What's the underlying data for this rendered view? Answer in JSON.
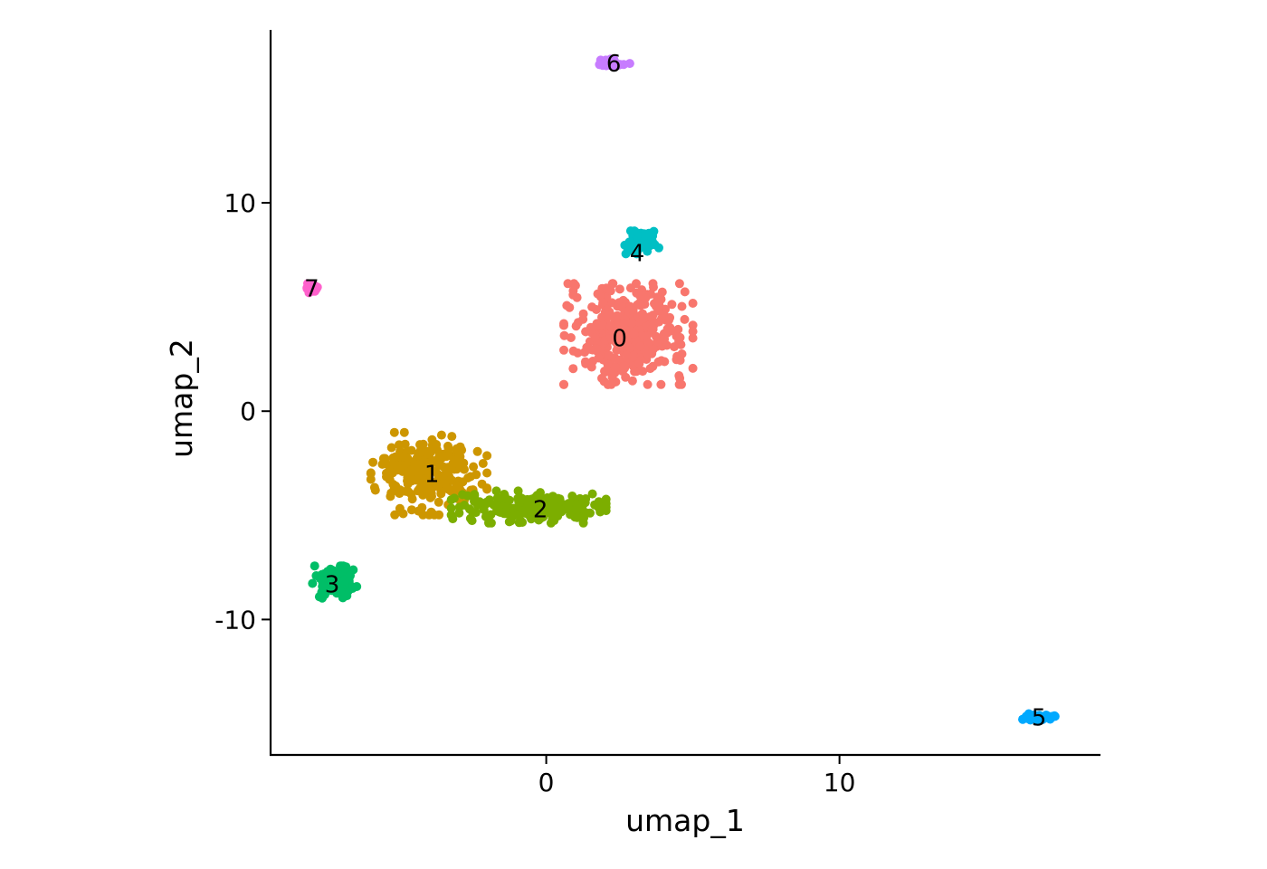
{
  "chart_data": {
    "type": "scatter",
    "title": "",
    "xlabel": "umap_1",
    "ylabel": "umap_2",
    "xlim": [
      -9.4,
      18.9
    ],
    "ylim": [
      -16.5,
      18.3
    ],
    "x_ticks": [
      0,
      10
    ],
    "y_ticks": [
      -10,
      0,
      10
    ],
    "x_tick_labels": [
      "0",
      "10"
    ],
    "y_tick_labels": [
      "-10",
      "0",
      "10"
    ],
    "grid": false,
    "legend": "none",
    "clusters": [
      {
        "label": "0",
        "color": "#F8766D",
        "label_x": 2.5,
        "label_y": 3.5,
        "cx": 2.8,
        "cy": 3.7,
        "sx": 1.0,
        "sy": 1.1,
        "n": 380
      },
      {
        "label": "1",
        "color": "#CD9600",
        "label_x": -3.9,
        "label_y": -3.0,
        "cx": -4.0,
        "cy": -3.0,
        "sx": 0.9,
        "sy": 0.9,
        "n": 250
      },
      {
        "label": "2",
        "color": "#7CAE00",
        "label_x": -0.2,
        "label_y": -4.7,
        "cx": -0.6,
        "cy": -4.6,
        "sx": 1.2,
        "sy": 0.35,
        "n": 200
      },
      {
        "label": "3",
        "color": "#00BE67",
        "label_x": -7.3,
        "label_y": -8.3,
        "cx": -7.2,
        "cy": -8.2,
        "sx": 0.35,
        "sy": 0.35,
        "n": 120
      },
      {
        "label": "4",
        "color": "#00BFC4",
        "label_x": 3.1,
        "label_y": 7.6,
        "cx": 3.2,
        "cy": 8.1,
        "sx": 0.3,
        "sy": 0.25,
        "n": 70
      },
      {
        "label": "5",
        "color": "#00A9FF",
        "label_x": 16.8,
        "label_y": -14.7,
        "cx": 16.8,
        "cy": -14.7,
        "sx": 0.25,
        "sy": 0.08,
        "n": 40
      },
      {
        "label": "6",
        "color": "#C77CFF",
        "label_x": 2.3,
        "label_y": 16.7,
        "cx": 2.3,
        "cy": 16.7,
        "sx": 0.25,
        "sy": 0.1,
        "n": 30
      },
      {
        "label": "7",
        "color": "#FF61CC",
        "label_x": -8.0,
        "label_y": 5.9,
        "cx": -8.0,
        "cy": 5.9,
        "sx": 0.1,
        "sy": 0.1,
        "n": 20
      }
    ]
  }
}
